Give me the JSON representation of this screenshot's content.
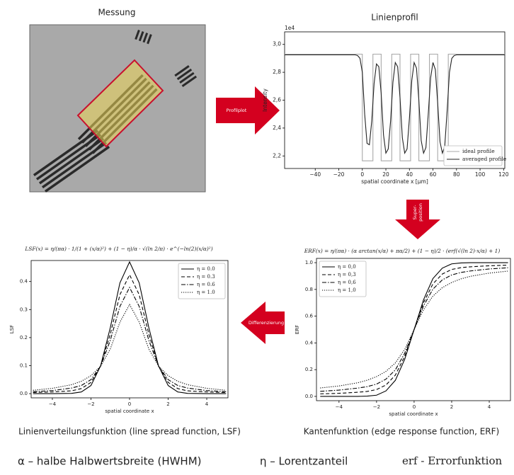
{
  "diagram": {
    "measurement_label": "Messung",
    "arrow_profile": "Profilplot",
    "arrow_superposition": [
      "Super-",
      "position"
    ],
    "arrow_differentiation": "Differenzierung",
    "formula_lsf": "LSF(x) = η/(πα) · 1/(1 + (x/α)²) + (1 − η)/α · √(ln 2/π) · e^(−ln(2)(x/α)²)",
    "formula_erf": "ERF(x) = η/(πα) · (α arctan(x/α) + πα/2) + (1 − η)/2 · (erf(√(ln 2)·x/α) + 1)",
    "caption_lsf": "Linienverteilungsfunktion (line spread function, LSF)",
    "caption_erf": "Kantenfunktion (edge response function, ERF)",
    "note_alpha": "α – halbe Halbwertsbreite (HWHM)",
    "note_eta": "η – Lorentzanteil",
    "note_erf": "erf - Errorfunktion"
  },
  "chart_data": [
    {
      "type": "line",
      "title": "Linienprofil",
      "y_offset_label": "1e4",
      "xlabel": "spatial coordinate x [µm]",
      "ylabel": "Intensity",
      "xlim": [
        -66,
        121
      ],
      "ylim": [
        2.11,
        3.09
      ],
      "xticks": [
        {
          "value": -40,
          "label": "−40"
        },
        {
          "value": -20,
          "label": "−20"
        },
        0,
        20,
        40,
        60,
        80,
        100,
        120
      ],
      "yticks": [
        {
          "value": 2.2,
          "label": "2,2"
        },
        {
          "value": 2.4,
          "label": "2,4"
        },
        {
          "value": 2.6,
          "label": "2,6"
        },
        {
          "value": 2.8,
          "label": "2,8"
        },
        {
          "value": 3.0,
          "label": "3,0"
        }
      ],
      "legend": "lower right",
      "series": [
        {
          "name": "ideal profile",
          "color": "#a8a8a8",
          "dash": "solid",
          "x": [
            -66,
            0,
            0,
            9,
            9,
            16,
            16,
            25,
            25,
            32,
            32,
            41,
            41,
            48,
            48,
            57,
            57,
            64,
            64,
            73,
            73,
            121
          ],
          "values": [
            2.93,
            2.93,
            2.165,
            2.165,
            2.93,
            2.93,
            2.165,
            2.165,
            2.93,
            2.93,
            2.165,
            2.165,
            2.93,
            2.93,
            2.165,
            2.165,
            2.93,
            2.93,
            2.165,
            2.165,
            2.93,
            2.93
          ]
        },
        {
          "name": "averaged profile",
          "color": "#222222",
          "dash": "solid",
          "x": [
            -66,
            -6,
            -4,
            -2,
            0,
            2,
            4,
            6,
            8,
            10,
            12,
            14,
            16,
            18,
            20,
            22,
            24,
            26,
            28,
            30,
            32,
            34,
            36,
            38,
            40,
            42,
            44,
            46,
            48,
            50,
            52,
            54,
            56,
            58,
            60,
            62,
            64,
            66,
            68,
            70,
            72,
            74,
            76,
            78,
            80,
            121
          ],
          "values": [
            2.925,
            2.925,
            2.92,
            2.9,
            2.8,
            2.5,
            2.29,
            2.28,
            2.45,
            2.72,
            2.86,
            2.84,
            2.65,
            2.35,
            2.22,
            2.25,
            2.45,
            2.73,
            2.87,
            2.84,
            2.62,
            2.33,
            2.22,
            2.25,
            2.47,
            2.74,
            2.87,
            2.83,
            2.6,
            2.31,
            2.22,
            2.26,
            2.5,
            2.76,
            2.87,
            2.82,
            2.58,
            2.3,
            2.22,
            2.27,
            2.52,
            2.8,
            2.9,
            2.92,
            2.925,
            2.925
          ]
        }
      ]
    },
    {
      "type": "line",
      "xlabel": "spatial coordinate x",
      "ylabel": "LSF",
      "xlim": [
        -5.1,
        5.1
      ],
      "ylim": [
        -0.015,
        0.475
      ],
      "xticks": [
        {
          "value": -4,
          "label": "−4"
        },
        {
          "value": -2,
          "label": "−2"
        },
        0,
        2,
        4
      ],
      "yticks": [
        {
          "value": 0,
          "label": "0.0"
        },
        0.1,
        0.2,
        0.3,
        0.4
      ],
      "legend": "upper right",
      "series": [
        {
          "name": "η = 0.0",
          "color": "#000000",
          "dash": "solid",
          "x": [
            -5,
            -4,
            -3,
            -2.5,
            -2,
            -1.5,
            -1,
            -0.5,
            0,
            0.5,
            1,
            1.5,
            2,
            2.5,
            3,
            4,
            5
          ],
          "values": [
            0,
            0,
            0.001,
            0.006,
            0.029,
            0.099,
            0.235,
            0.395,
            0.47,
            0.395,
            0.235,
            0.099,
            0.029,
            0.006,
            0.001,
            0,
            0
          ]
        },
        {
          "name": "η = 0.3",
          "color": "#000000",
          "dash": "dashed",
          "x": [
            -5,
            -4,
            -3,
            -2.5,
            -2,
            -1.5,
            -1,
            -0.5,
            0,
            0.5,
            1,
            1.5,
            2,
            2.5,
            3,
            4,
            5
          ],
          "values": [
            0.004,
            0.006,
            0.01,
            0.018,
            0.04,
            0.099,
            0.212,
            0.353,
            0.424,
            0.353,
            0.212,
            0.099,
            0.04,
            0.018,
            0.01,
            0.006,
            0.004
          ]
        },
        {
          "name": "η = 0.6",
          "color": "#000000",
          "dash": "dashdot",
          "x": [
            -5,
            -4,
            -3,
            -2.5,
            -2,
            -1.5,
            -1,
            -0.5,
            0,
            0.5,
            1,
            1.5,
            2,
            2.5,
            3,
            4,
            5
          ],
          "values": [
            0.007,
            0.011,
            0.02,
            0.029,
            0.05,
            0.098,
            0.19,
            0.311,
            0.379,
            0.311,
            0.19,
            0.098,
            0.05,
            0.029,
            0.02,
            0.011,
            0.007
          ]
        },
        {
          "name": "η = 1.0",
          "color": "#000000",
          "dash": "dotted",
          "x": [
            -5,
            -4,
            -3,
            -2.5,
            -2,
            -1.5,
            -1,
            -0.5,
            0,
            0.5,
            1,
            1.5,
            2,
            2.5,
            3,
            4,
            5
          ],
          "values": [
            0.012,
            0.019,
            0.032,
            0.044,
            0.064,
            0.098,
            0.159,
            0.255,
            0.318,
            0.255,
            0.159,
            0.098,
            0.064,
            0.044,
            0.032,
            0.019,
            0.012
          ]
        }
      ]
    },
    {
      "type": "line",
      "xlabel": "spatial coordinate x",
      "ylabel": "ERF",
      "xlim": [
        -5.2,
        5.13
      ],
      "ylim": [
        -0.032,
        1.032
      ],
      "xticks": [
        {
          "value": -4,
          "label": "−4"
        },
        {
          "value": -2,
          "label": "−2"
        },
        0,
        2,
        4
      ],
      "yticks": [
        {
          "value": 0,
          "label": "0.0"
        },
        0.2,
        0.4,
        0.6,
        0.8,
        {
          "value": 1,
          "label": "1.0"
        }
      ],
      "legend": "upper left",
      "series": [
        {
          "name": "η = 0,0",
          "color": "#000000",
          "dash": "solid",
          "x": [
            -5,
            -4,
            -3,
            -2.5,
            -2,
            -1.5,
            -1,
            -0.5,
            0,
            0.5,
            1,
            1.5,
            2,
            2.5,
            3,
            4,
            5
          ],
          "values": [
            0,
            0,
            0,
            0.002,
            0.009,
            0.041,
            0.12,
            0.278,
            0.5,
            0.722,
            0.881,
            0.959,
            0.991,
            0.998,
            1,
            1,
            1
          ]
        },
        {
          "name": "η = 0,3",
          "color": "#000000",
          "dash": "dashed",
          "x": [
            -5,
            -4,
            -3,
            -2.5,
            -2,
            -1.5,
            -1,
            -0.5,
            0,
            0.5,
            1,
            1.5,
            2,
            2.5,
            3,
            4,
            5
          ],
          "values": [
            0.019,
            0.023,
            0.031,
            0.037,
            0.051,
            0.085,
            0.159,
            0.3,
            0.5,
            0.7,
            0.841,
            0.915,
            0.949,
            0.963,
            0.969,
            0.977,
            0.981
          ]
        },
        {
          "name": "η = 0,6",
          "color": "#000000",
          "dash": "dashdot",
          "x": [
            -5,
            -4,
            -3,
            -2.5,
            -2,
            -1.5,
            -1,
            -0.5,
            0,
            0.5,
            1,
            1.5,
            2,
            2.5,
            3,
            4,
            5
          ],
          "values": [
            0.038,
            0.047,
            0.062,
            0.073,
            0.092,
            0.129,
            0.198,
            0.323,
            0.5,
            0.677,
            0.802,
            0.871,
            0.908,
            0.927,
            0.938,
            0.953,
            0.962
          ]
        },
        {
          "name": "η = 1,0",
          "color": "#000000",
          "dash": "dotted",
          "x": [
            -5,
            -4,
            -3,
            -2.5,
            -2,
            -1.5,
            -1,
            -0.5,
            0,
            0.5,
            1,
            1.5,
            2,
            2.5,
            3,
            4,
            5
          ],
          "values": [
            0.063,
            0.078,
            0.102,
            0.121,
            0.148,
            0.187,
            0.25,
            0.352,
            0.5,
            0.648,
            0.75,
            0.813,
            0.852,
            0.879,
            0.898,
            0.922,
            0.937
          ]
        }
      ]
    }
  ]
}
